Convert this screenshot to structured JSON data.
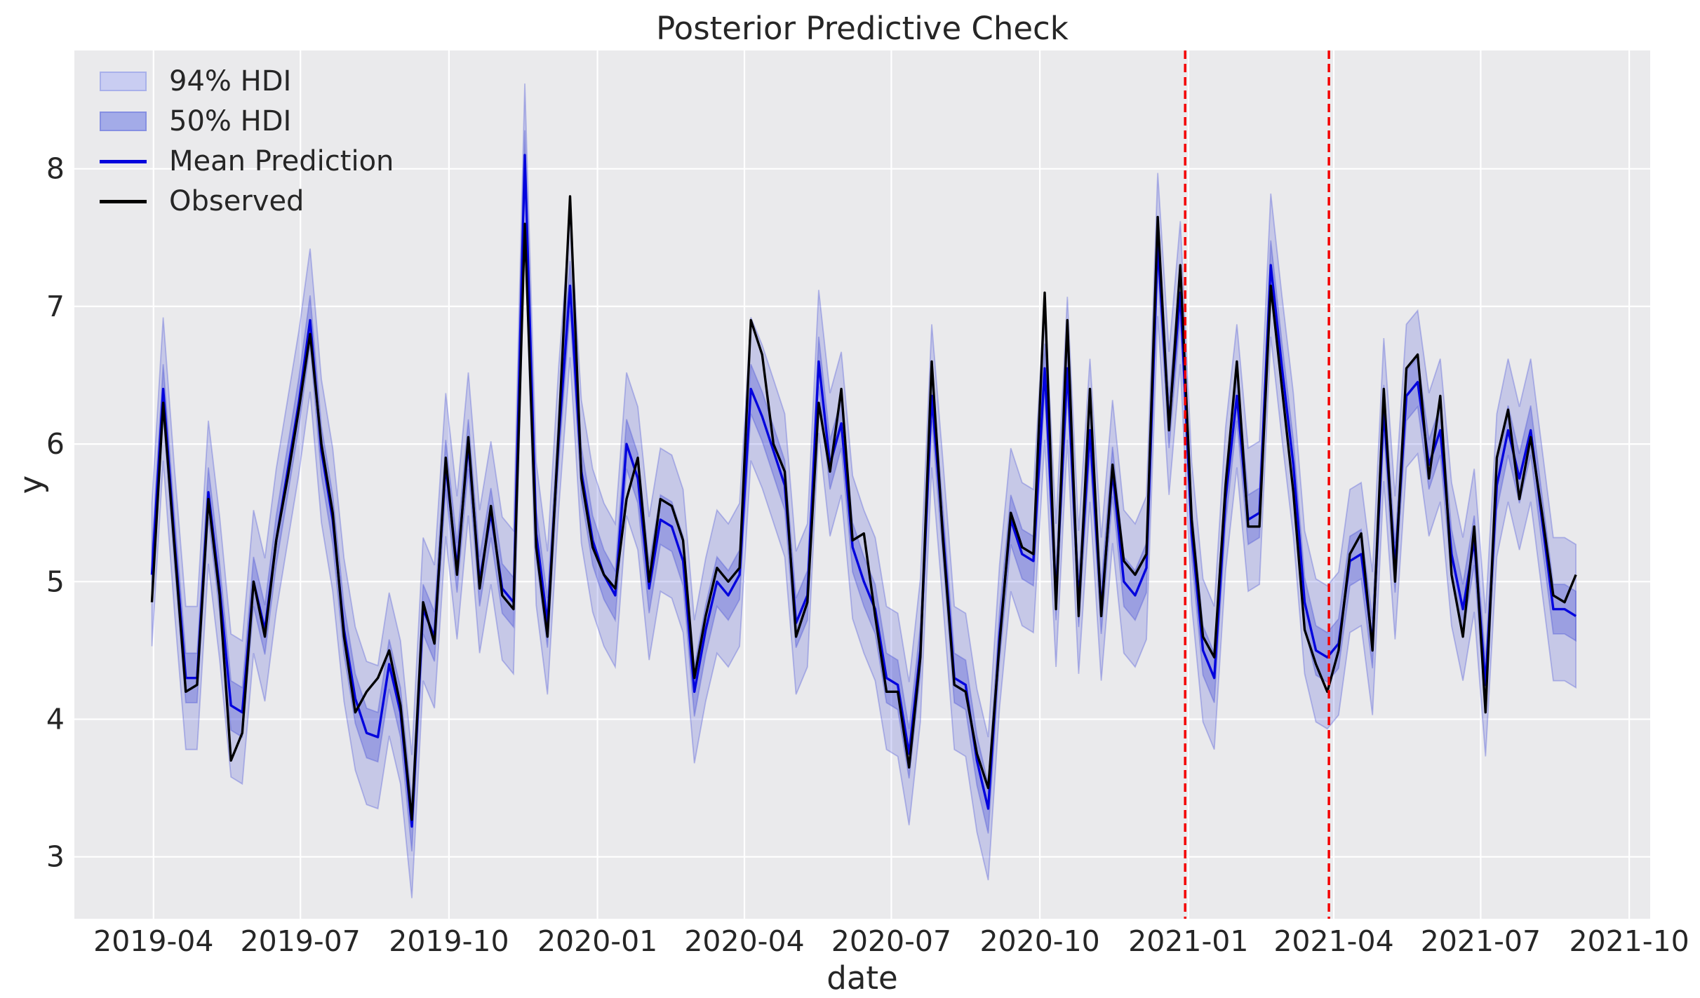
{
  "figure": {
    "title": "Posterior Predictive Check",
    "x_axis_label": "date",
    "y_axis_label": "y"
  },
  "legend": {
    "items": [
      {
        "id": "hdi94",
        "label": "94% HDI",
        "swatch_type": "patch",
        "fill": "#c9cdf2",
        "border": "#a9b1ea"
      },
      {
        "id": "hdi50",
        "label": "50% HDI",
        "swatch_type": "patch",
        "fill": "#a3abe8",
        "border": "#8690e2"
      },
      {
        "id": "mean",
        "label": "Mean Prediction",
        "swatch_type": "line",
        "stroke": "#0404dd"
      },
      {
        "id": "observed",
        "label": "Observed",
        "swatch_type": "line",
        "stroke": "#000000"
      }
    ]
  },
  "colors": {
    "figure_bg": "#ffffff",
    "axes_bg": "#eaeaec",
    "grid": "#ffffff",
    "text": "#262626",
    "observed_line": "#000000",
    "mean_line": "#0404dd",
    "hdi_fill": "rgba(55,66,213,0.20)",
    "hdi50_fill": "rgba(55,66,213,0.30)",
    "band_edge": "rgba(55,66,213,0.30)",
    "split_line": "#f40000"
  },
  "chart_data": {
    "type": "line",
    "title": "Posterior Predictive Check",
    "xlabel": "date",
    "ylabel": "y",
    "grid": true,
    "legend_position": "upper left",
    "x_start_date": "2019-03-31",
    "x_interval_days": 7,
    "n_points": 127,
    "xlim_dates": [
      "2019-02-11",
      "2021-10-14"
    ],
    "ylim": [
      2.55,
      8.86
    ],
    "y_ticks": [
      3,
      4,
      5,
      6,
      7,
      8
    ],
    "x_ticks": [
      {
        "label": "2019-04",
        "date": "2019-04-01"
      },
      {
        "label": "2019-07",
        "date": "2019-07-01"
      },
      {
        "label": "2019-10",
        "date": "2019-10-01"
      },
      {
        "label": "2020-01",
        "date": "2020-01-01"
      },
      {
        "label": "2020-04",
        "date": "2020-04-01"
      },
      {
        "label": "2020-07",
        "date": "2020-07-01"
      },
      {
        "label": "2020-10",
        "date": "2020-10-01"
      },
      {
        "label": "2021-01",
        "date": "2021-01-01"
      },
      {
        "label": "2021-04",
        "date": "2021-04-01"
      },
      {
        "label": "2021-07",
        "date": "2021-07-01"
      },
      {
        "label": "2021-10",
        "date": "2021-10-01"
      }
    ],
    "split_lines": [
      {
        "date": "2020-12-30",
        "style": "dashed"
      },
      {
        "date": "2021-03-29",
        "style": "dashed"
      }
    ],
    "series": [
      {
        "name": "Observed",
        "type": "line",
        "values": [
          4.85,
          6.3,
          5.25,
          4.2,
          4.25,
          5.6,
          4.9,
          3.7,
          3.9,
          5.0,
          4.6,
          5.3,
          5.75,
          6.25,
          6.8,
          6.0,
          5.5,
          4.6,
          4.05,
          4.2,
          4.3,
          4.5,
          4.1,
          3.27,
          4.85,
          4.55,
          5.9,
          5.05,
          6.05,
          4.95,
          5.55,
          4.9,
          4.8,
          7.6,
          5.25,
          4.6,
          6.1,
          7.8,
          5.75,
          5.25,
          5.05,
          4.95,
          5.6,
          5.9,
          5.0,
          5.6,
          5.55,
          5.3,
          4.3,
          4.75,
          5.1,
          5.0,
          5.1,
          6.9,
          6.65,
          6.0,
          5.8,
          4.6,
          4.85,
          6.3,
          5.8,
          6.4,
          5.3,
          5.35,
          4.75,
          4.2,
          4.2,
          3.65,
          4.45,
          6.6,
          5.3,
          4.25,
          4.2,
          3.75,
          3.5,
          4.55,
          5.5,
          5.25,
          5.2,
          7.1,
          4.8,
          6.9,
          4.75,
          6.4,
          4.75,
          5.85,
          5.15,
          5.05,
          5.2,
          7.65,
          6.1,
          7.3,
          5.45,
          4.6,
          4.45,
          5.7,
          6.6,
          5.4,
          5.4,
          7.15,
          6.4,
          5.65,
          4.65,
          4.4,
          4.2,
          4.5,
          5.2,
          5.35,
          4.5,
          6.4,
          5.0,
          6.55,
          6.65,
          5.75,
          6.35,
          5.05,
          4.6,
          5.4,
          4.05,
          5.9,
          6.25,
          5.6,
          6.05,
          5.5,
          4.9,
          4.85,
          5.05
        ]
      },
      {
        "name": "Mean Prediction",
        "type": "line",
        "values": [
          5.05,
          6.4,
          5.3,
          4.3,
          4.3,
          5.65,
          4.95,
          4.1,
          4.05,
          5.0,
          4.65,
          5.3,
          5.8,
          6.3,
          6.9,
          5.95,
          5.45,
          4.65,
          4.15,
          3.9,
          3.87,
          4.4,
          4.05,
          3.22,
          4.8,
          4.6,
          5.85,
          5.1,
          6.0,
          5.0,
          5.5,
          4.95,
          4.85,
          8.1,
          5.35,
          4.7,
          6.05,
          7.15,
          5.8,
          5.3,
          5.05,
          4.9,
          6.0,
          5.75,
          4.95,
          5.45,
          5.4,
          5.15,
          4.2,
          4.65,
          5.0,
          4.9,
          5.05,
          6.4,
          6.2,
          5.95,
          5.7,
          4.7,
          4.9,
          6.6,
          5.85,
          6.15,
          5.25,
          5.0,
          4.8,
          4.3,
          4.25,
          3.75,
          4.5,
          6.35,
          5.35,
          4.3,
          4.25,
          3.7,
          3.35,
          4.6,
          5.45,
          5.2,
          5.15,
          6.55,
          4.9,
          6.55,
          4.85,
          6.1,
          4.8,
          5.8,
          5.0,
          4.9,
          5.1,
          7.45,
          6.15,
          7.1,
          5.35,
          4.5,
          4.3,
          5.6,
          6.35,
          5.45,
          5.5,
          7.3,
          6.55,
          5.85,
          4.85,
          4.5,
          4.45,
          4.55,
          5.15,
          5.2,
          4.55,
          6.25,
          5.1,
          6.35,
          6.45,
          5.85,
          6.1,
          5.2,
          4.8,
          5.3,
          4.25,
          5.7,
          6.1,
          5.75,
          6.1,
          5.45,
          4.8,
          4.8,
          4.75
        ]
      },
      {
        "name": "94% HDI",
        "type": "band",
        "around": "Mean Prediction",
        "halfwidth": 0.52
      },
      {
        "name": "50% HDI",
        "type": "band",
        "around": "Mean Prediction",
        "halfwidth": 0.18
      }
    ]
  }
}
